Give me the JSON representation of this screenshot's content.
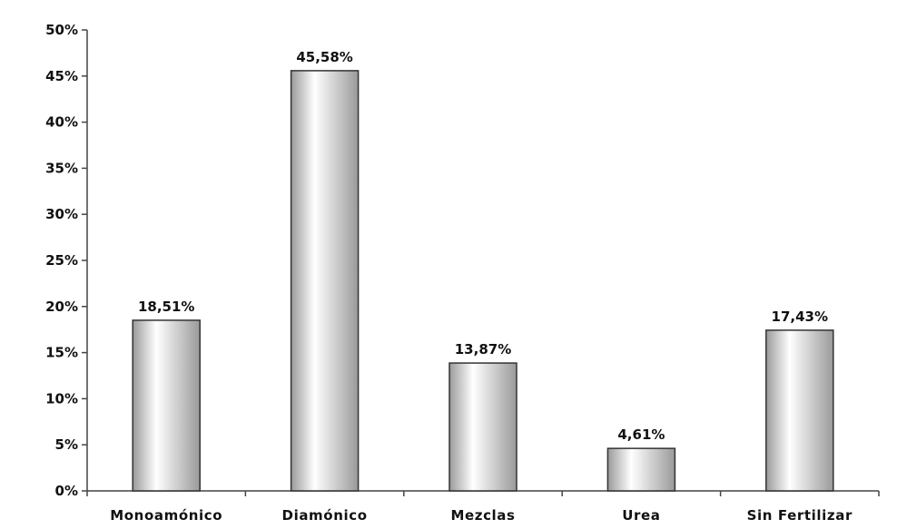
{
  "chart_data": {
    "type": "bar",
    "categories": [
      "Monoamónico",
      "Diamónico",
      "Mezclas",
      "Urea",
      "Sin Fertilizar"
    ],
    "values": [
      18.51,
      45.58,
      13.87,
      4.61,
      17.43
    ],
    "data_labels": [
      "18,51%",
      "45,58%",
      "13,87%",
      "4,61%",
      "17,43%"
    ],
    "ylim": [
      0,
      50
    ],
    "y_ticks": [
      0,
      5,
      10,
      15,
      20,
      25,
      30,
      35,
      40,
      45,
      50
    ],
    "y_tick_labels": [
      "0%",
      "5%",
      "10%",
      "15%",
      "20%",
      "25%",
      "30%",
      "35%",
      "40%",
      "45%",
      "50%"
    ],
    "title": "",
    "xlabel": "",
    "ylabel": "",
    "grid": false,
    "legend": "none",
    "colors": {
      "bar_fill_light": "#ffffff",
      "bar_fill_dark": "#9a9a9a",
      "bar_stroke": "#333333",
      "axis": "#444444"
    }
  }
}
